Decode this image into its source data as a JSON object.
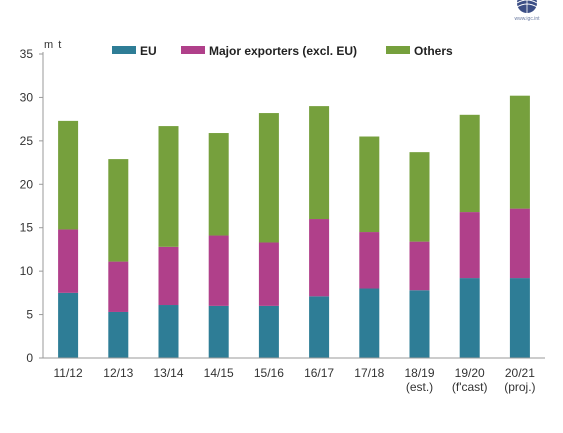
{
  "chart_data": {
    "type": "bar",
    "stacked": true,
    "title": "",
    "xlabel": "",
    "ylabel": "m t",
    "ylim": [
      0,
      35
    ],
    "yticks": [
      0,
      5,
      10,
      15,
      20,
      25,
      30,
      35
    ],
    "grid": false,
    "legend_position": "top",
    "categories": [
      "11/12",
      "12/13",
      "13/14",
      "14/15",
      "15/16",
      "16/17",
      "17/18",
      "18/19\n(est.)",
      "19/20\n(f'cast)",
      "20/21\n(proj.)"
    ],
    "series": [
      {
        "name": "EU",
        "color": "#2e7d96",
        "values": [
          7.5,
          5.3,
          6.1,
          6.0,
          6.0,
          7.1,
          8.0,
          7.8,
          9.2,
          9.2
        ]
      },
      {
        "name": "Major exporters (excl. EU)",
        "color": "#b0408a",
        "values": [
          7.3,
          5.8,
          6.7,
          8.1,
          7.3,
          8.9,
          6.5,
          5.6,
          7.6,
          8.0
        ]
      },
      {
        "name": "Others",
        "color": "#76a03d",
        "values": [
          12.5,
          11.8,
          13.9,
          11.8,
          14.9,
          13.0,
          11.0,
          10.3,
          11.2,
          13.0
        ]
      }
    ]
  },
  "logo": {
    "icon": "globe-icon",
    "text": "www.igc.int"
  }
}
